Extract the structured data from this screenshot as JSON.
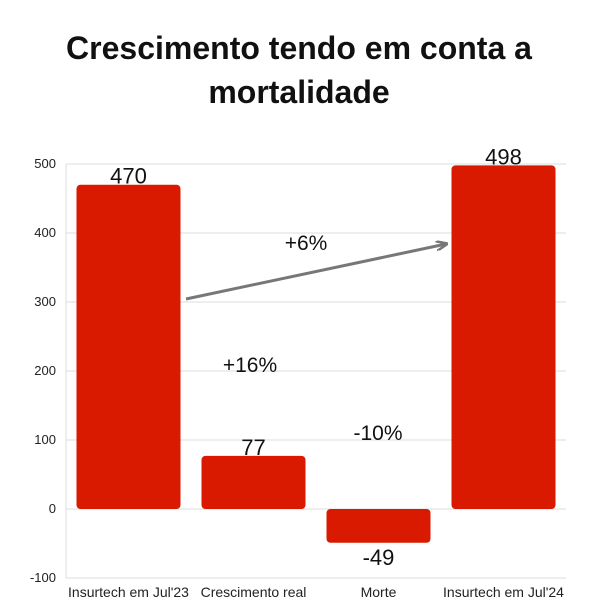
{
  "title_lines": [
    "Crescimento tendo em conta a",
    "mortalidade"
  ],
  "chart_data": {
    "type": "bar",
    "subtype": "waterfall",
    "title": "Crescimento tendo em conta a mortalidade",
    "categories": [
      "Insurtech em Jul'23",
      "Crescimento real",
      "Morte",
      "Insurtech em Jul'24"
    ],
    "values": [
      470,
      77,
      -49,
      498
    ],
    "data_labels": [
      "470",
      "77",
      "-49",
      "498"
    ],
    "yticks": [
      -100,
      0,
      100,
      200,
      300,
      400,
      500
    ],
    "ylim": [
      -100,
      500
    ],
    "grid": true,
    "bar_color": "#d91a00",
    "annotations": [
      {
        "text": "+6%",
        "type": "arrow"
      },
      {
        "text": "+16%"
      },
      {
        "text": "-10%"
      }
    ],
    "arrow_color": "#777777"
  }
}
